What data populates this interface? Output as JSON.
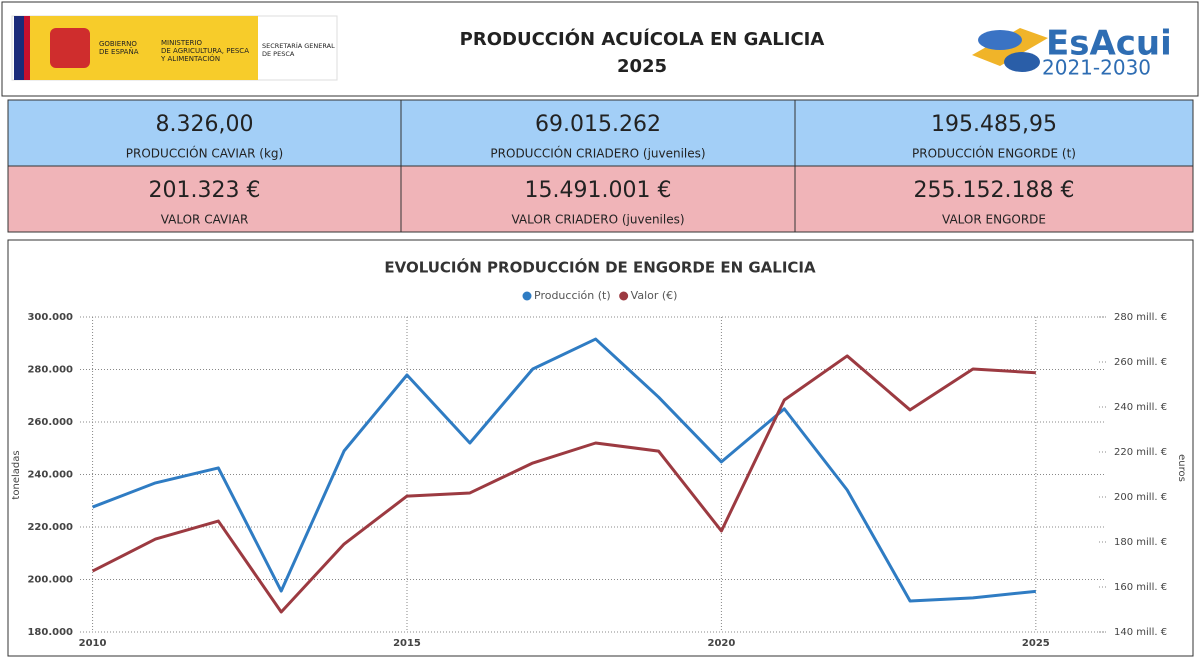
{
  "header": {
    "gov": [
      "GOBIERNO",
      "DE ESPAÑA"
    ],
    "ministry": [
      "MINISTERIO",
      "DE AGRICULTURA, PESCA",
      "Y ALIMENTACIÓN"
    ],
    "secretary": [
      "SECRETARÍA GENERAL",
      "DE PESCA"
    ],
    "title": [
      "PRODUCCIÓN ACUÍCOLA EN  GALICIA",
      "2025"
    ],
    "logo": "EsAcui",
    "logo_years": "2021-2030"
  },
  "kpis": [
    {
      "value": "8.326,00",
      "label": "PRODUCCIÓN CAVIAR (kg)"
    },
    {
      "value": "69.015.262",
      "label": "PRODUCCIÓN CRIADERO (juveniles)"
    },
    {
      "value": "195.485,95",
      "label": "PRODUCCIÓN ENGORDE (t)"
    },
    {
      "value": "201.323 €",
      "label": "VALOR CAVIAR"
    },
    {
      "value": "15.491.001 €",
      "label": "VALOR CRIADERO (juveniles)"
    },
    {
      "value": "255.152.188 €",
      "label": "VALOR ENGORDE"
    }
  ],
  "chart_data": {
    "type": "line",
    "title": "EVOLUCIÓN PRODUCCIÓN DE ENGORDE EN GALICIA",
    "y_label": "toneladas",
    "y2_label": "euros",
    "x": [
      2010,
      2011,
      2012,
      2013,
      2014,
      2015,
      2016,
      2017,
      2018,
      2019,
      2020,
      2021,
      2022,
      2023,
      2024,
      2025
    ],
    "xlim": [
      2009.8,
      2026.1
    ],
    "xticks": [
      2010,
      2015,
      2020,
      2025
    ],
    "ylim": [
      180000,
      300000
    ],
    "yticks": [
      {
        "value": 180000,
        "label": "180.000"
      },
      {
        "value": 200000,
        "label": "200.000"
      },
      {
        "value": 220000,
        "label": "220.000"
      },
      {
        "value": 240000,
        "label": "240.000"
      },
      {
        "value": 260000,
        "label": "260.000"
      },
      {
        "value": 280000,
        "label": "280.000"
      },
      {
        "value": 300000,
        "label": "300.000"
      }
    ],
    "y2lim": [
      140000000,
      280000000
    ],
    "y2ticks": [
      {
        "value": 140000000,
        "label": "140 mill. €"
      },
      {
        "value": 160000000,
        "label": "160 mill. €"
      },
      {
        "value": 180000000,
        "label": "180 mill. €"
      },
      {
        "value": 200000000,
        "label": "200 mill. €"
      },
      {
        "value": 220000000,
        "label": "220 mill. €"
      },
      {
        "value": 240000000,
        "label": "240 mill. €"
      },
      {
        "value": 260000000,
        "label": "260 mill. €"
      },
      {
        "value": 280000000,
        "label": "280 mill. €"
      }
    ],
    "grid": true,
    "series": [
      {
        "name": "Producción (t)",
        "color": "#2f7cc3",
        "values": [
          227600,
          236800,
          242500,
          195600,
          249000,
          277900,
          252000,
          280200,
          291600,
          269500,
          244800,
          265000,
          234100,
          191800,
          193000,
          195486
        ]
      },
      {
        "name": "Valor (€)",
        "color": "#9c3a41",
        "axis": "y2",
        "values": [
          167100000,
          181300000,
          189300000,
          148900000,
          179100000,
          200400000,
          201800000,
          215100000,
          224000000,
          220400000,
          184900000,
          243100000,
          262700000,
          238700000,
          256900000,
          255200000
        ]
      }
    ]
  }
}
